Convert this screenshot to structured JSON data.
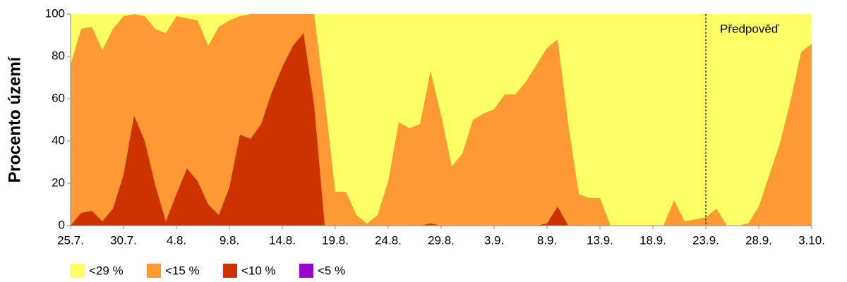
{
  "chart_data": {
    "type": "area",
    "y_label": "Procento území",
    "categories": [
      "25.7.",
      null,
      null,
      null,
      null,
      "30.7.",
      null,
      null,
      null,
      null,
      "4.8.",
      null,
      null,
      null,
      null,
      "9.8.",
      null,
      null,
      null,
      null,
      "14.8.",
      null,
      null,
      null,
      null,
      "19.8.",
      null,
      null,
      null,
      null,
      "24.8.",
      null,
      null,
      null,
      null,
      "29.8.",
      null,
      null,
      null,
      null,
      "3.9.",
      null,
      null,
      null,
      null,
      "8.9.",
      null,
      null,
      null,
      null,
      "13.9.",
      null,
      null,
      null,
      null,
      "18.9.",
      null,
      null,
      null,
      null,
      "23.9.",
      null,
      null,
      null,
      null,
      "28.9.",
      null,
      null,
      null,
      null,
      "3.10."
    ],
    "series": [
      {
        "name": "<29 %",
        "color": "#ffff66",
        "values": [
          100,
          100,
          100,
          100,
          100,
          100,
          100,
          100,
          100,
          100,
          100,
          100,
          100,
          100,
          100,
          100,
          100,
          100,
          100,
          100,
          100,
          100,
          100,
          100,
          100,
          100,
          100,
          100,
          100,
          100,
          100,
          100,
          100,
          100,
          100,
          100,
          100,
          100,
          100,
          100,
          100,
          100,
          100,
          100,
          100,
          100,
          100,
          100,
          100,
          100,
          100,
          100,
          100,
          100,
          100,
          100,
          100,
          100,
          100,
          100,
          100,
          100,
          100,
          100,
          100,
          100,
          100,
          100,
          100,
          100,
          100
        ]
      },
      {
        "name": "<15 %",
        "color": "#ff9933",
        "values": [
          76,
          93,
          94,
          83,
          93,
          99,
          100,
          99,
          93,
          91,
          99,
          98,
          97,
          85,
          94,
          97,
          99,
          100,
          100,
          100,
          100,
          100,
          100,
          100,
          60,
          16,
          16,
          5,
          1,
          5,
          21,
          49,
          46,
          48,
          73,
          52,
          28,
          34,
          50,
          53,
          55,
          62,
          62,
          68,
          76,
          84,
          88,
          48,
          15,
          13,
          13,
          0,
          0,
          0,
          0,
          0,
          0,
          12,
          2,
          3,
          4,
          8,
          0,
          0,
          1,
          9,
          24,
          39,
          59,
          82,
          86
        ]
      },
      {
        "name": "<10 %",
        "color": "#cc3300",
        "values": [
          0,
          6,
          7,
          2,
          8,
          24,
          52,
          40,
          19,
          2,
          15,
          27,
          21,
          10,
          5,
          18,
          43,
          41,
          48,
          63,
          75,
          85,
          91,
          57,
          0,
          0,
          0,
          0,
          0,
          0,
          0,
          0,
          0,
          0,
          1,
          0,
          0,
          0,
          0,
          0,
          0,
          0,
          0,
          0,
          0,
          1,
          9,
          0,
          0,
          0,
          0,
          0,
          0,
          0,
          0,
          0,
          0,
          0,
          0,
          0,
          0,
          0,
          0,
          0,
          0,
          0,
          0,
          0,
          0,
          0,
          0
        ]
      },
      {
        "name": "<5 %",
        "color": "#9900cc",
        "values": [
          0,
          0,
          0,
          0,
          0,
          0,
          0,
          0,
          0,
          0,
          0,
          0,
          0,
          0,
          0,
          0,
          0,
          0,
          0,
          0,
          0,
          0,
          0,
          0,
          0,
          0,
          0,
          0,
          0,
          0,
          0,
          0,
          0,
          0,
          0,
          0,
          0,
          0,
          0,
          0,
          0,
          0,
          0,
          0,
          0,
          0,
          0,
          0,
          0,
          0,
          0,
          0,
          0,
          0,
          0,
          0,
          0,
          0,
          0,
          0,
          0,
          0,
          0,
          0,
          0,
          0,
          0,
          0,
          0,
          0,
          0
        ]
      }
    ],
    "ylim": [
      0,
      100
    ],
    "yticks": [
      0,
      20,
      40,
      60,
      80,
      100
    ],
    "forecast": {
      "label": "Předpověď",
      "x": "23.9."
    }
  }
}
